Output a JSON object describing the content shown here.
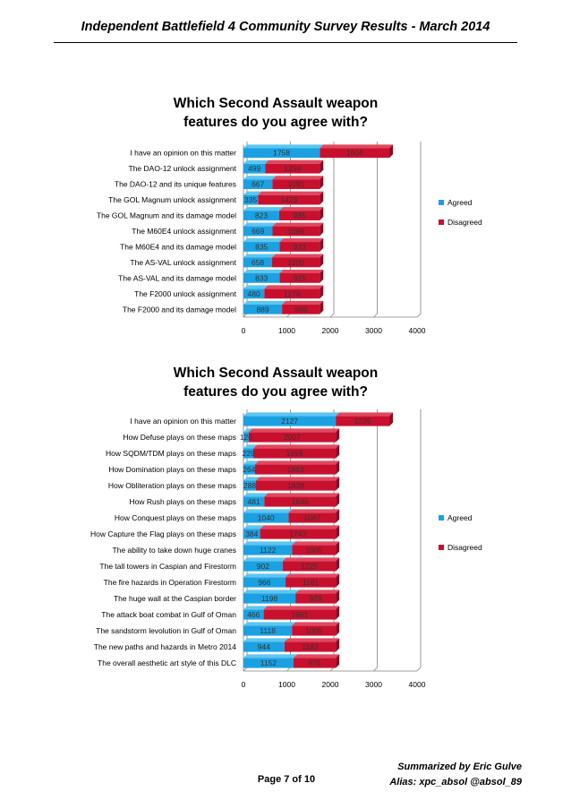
{
  "header": {
    "title": "Independent Battlefield 4 Community Survey Results - March 2014"
  },
  "footer": {
    "page": "Page 7 of 10",
    "summarized_by": "Summarized by Eric Gulve",
    "alias": "Alias: xpc_absol @absol_89"
  },
  "colors": {
    "agreed": "#1ba1e2",
    "disagreed": "#c8102e"
  },
  "chart_data": [
    {
      "type": "bar",
      "orientation": "horizontal",
      "stacked": true,
      "title_lines": [
        "Which Second Assault weapon",
        "features do you agree with?"
      ],
      "categories": [
        "I have an opinion on this matter",
        "The DAO-12 unlock assignment",
        "The DAO-12 and its unique features",
        "The GOL Magnum unlock assignment",
        "The GOL Magnum and its damage model",
        "The M60E4 unlock assignment",
        "The M60E4 and its damage model",
        "The AS-VAL unlock assignment",
        "The AS-VAL and its damage model",
        "The F2000 unlock assignment",
        "The F2000 and its damage model"
      ],
      "series": [
        {
          "name": "Agreed",
          "values": [
            1758,
            499,
            667,
            335,
            823,
            669,
            835,
            658,
            833,
            480,
            889
          ]
        },
        {
          "name": "Disagreed",
          "values": [
            1604,
            1259,
            1091,
            1423,
            935,
            1089,
            923,
            1100,
            925,
            1278,
            869
          ]
        }
      ],
      "xlim": [
        0,
        4000
      ],
      "xticks": [
        "0",
        "1000",
        "2000",
        "3000",
        "4000"
      ],
      "legend": [
        "Agreed",
        "Disagreed"
      ],
      "legend_position": "right"
    },
    {
      "type": "bar",
      "orientation": "horizontal",
      "stacked": true,
      "title_lines": [
        "Which Second Assault weapon",
        "features do you agree with?"
      ],
      "categories": [
        "I have an opinion on this matter",
        "How Defuse plays on these maps",
        "How SQDM/TDM plays on these maps",
        "How Domination plays on these maps",
        "How Obliteration plays on these maps",
        "How Rush plays on these maps",
        "How Conquest plays on these maps",
        "How Capture the Flag plays on these maps",
        "The ability to take down huge cranes",
        "The tall towers in Caspian and Firestorm",
        "The fire hazards in Operation Firestorm",
        "The huge wall at the Caspian border",
        "The attack boat combat in Gulf of Oman",
        "The sandstorm levolution in Gulf of Oman",
        "The new paths and hazards in Metro 2014",
        "The overall aesthetic art style of this DLC"
      ],
      "series": [
        {
          "name": "Agreed",
          "values": [
            2127,
            120,
            229,
            264,
            288,
            481,
            1040,
            384,
            1122,
            902,
            966,
            1198,
            466,
            1118,
            944,
            1152
          ]
        },
        {
          "name": "Disagreed",
          "values": [
            1235,
            2007,
            1898,
            1863,
            1839,
            1646,
            1087,
            1743,
            1005,
            1225,
            1161,
            929,
            1661,
            1009,
            1183,
            975
          ]
        }
      ],
      "xlim": [
        0,
        4000
      ],
      "xticks": [
        "0",
        "1000",
        "2000",
        "3000",
        "4000"
      ],
      "legend": [
        "Agreed",
        "Disagreed"
      ],
      "legend_position": "right"
    }
  ]
}
